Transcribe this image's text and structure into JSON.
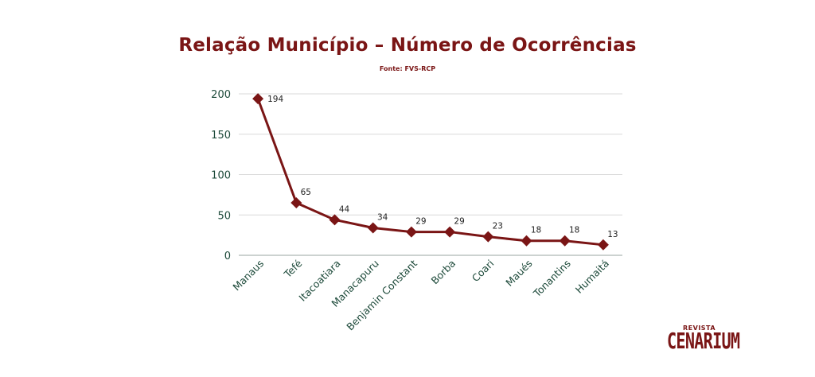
{
  "header": {
    "title": "Relação Município – Número de Ocorrências",
    "subtitle": "Fonte: FVS-RCP"
  },
  "logo": {
    "top": "REVISTA",
    "main": "CENARIUM"
  },
  "colors": {
    "series": "#7a1515",
    "title": "#7a1515",
    "axis_text": "#1d4a3a",
    "grid": "#d9d9d9"
  },
  "chart_data": {
    "type": "line",
    "title": "Relação Município – Número de Ocorrências",
    "subtitle": "Fonte: FVS-RCP",
    "categories": [
      "Manaus",
      "Tefé",
      "Itacoatiara",
      "Manacapuru",
      "Benjamin Constant",
      "Borba",
      "Coari",
      "Maués",
      "Tonantins",
      "Humaitá"
    ],
    "values": [
      194,
      65,
      44,
      34,
      29,
      29,
      23,
      18,
      18,
      13
    ],
    "ylim": [
      0,
      200
    ],
    "yticks": [
      0,
      50,
      100,
      150,
      200
    ],
    "grid": true,
    "marker": "diamond",
    "data_labels": true,
    "legend": "none"
  }
}
